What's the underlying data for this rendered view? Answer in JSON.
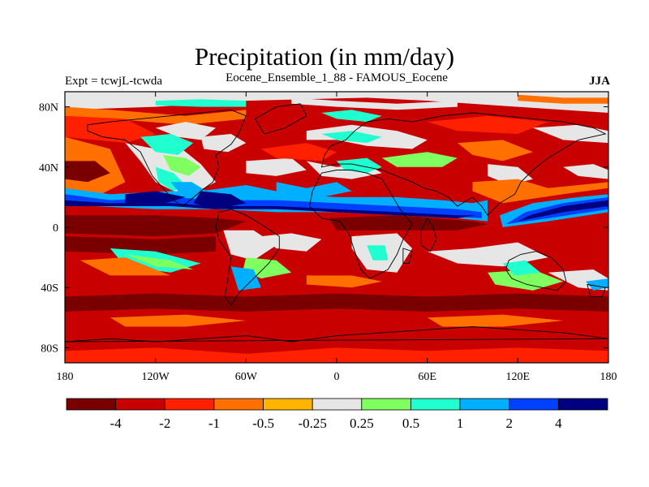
{
  "title": "Precipitation (in mm/day)",
  "left_label": "Expt = tcwjL-tcwda",
  "center_label": "Eocene_Ensemble_1_88 - FAMOUS_Eocene",
  "right_label": "JJA",
  "axes": {
    "lat_ticks": [
      "80N",
      "40N",
      "0",
      "40S",
      "80S"
    ],
    "lon_ticks": [
      "180",
      "120W",
      "60W",
      "0",
      "60E",
      "120E",
      "180"
    ]
  },
  "colorbar": {
    "colors": [
      "#7a0000",
      "#c80000",
      "#ff2000",
      "#ff7000",
      "#ffb400",
      "#e6e6e6",
      "#80ff60",
      "#20ffd0",
      "#00b0ff",
      "#0040ff",
      "#000080"
    ],
    "labels": [
      "-4",
      "-2",
      "-1",
      "-0.5",
      "-0.25",
      "0.25",
      "0.5",
      "1",
      "2",
      "4"
    ]
  },
  "map_colors": {
    "ocean_default": "#c80000",
    "coastline": "#000000"
  }
}
